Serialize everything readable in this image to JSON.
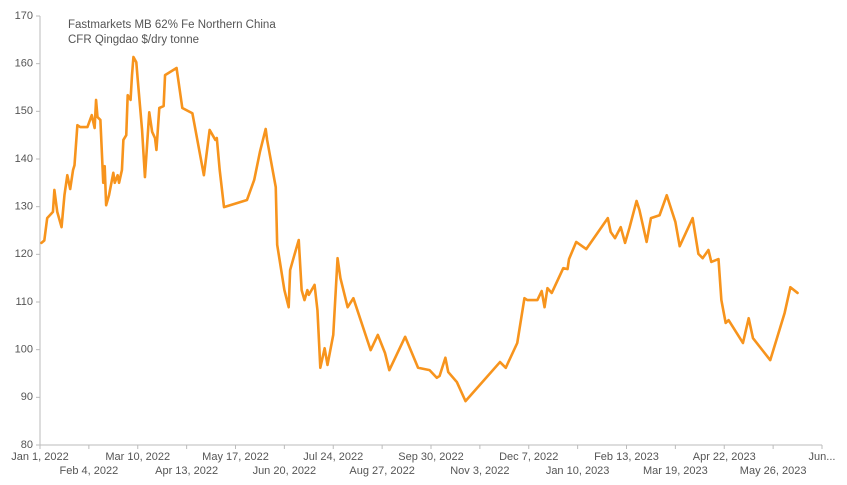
{
  "chart_data": {
    "type": "line",
    "title": [
      "Fastmarkets MB 62% Fe Northern China",
      "CFR Qingdao $/dry tonne"
    ],
    "x": [
      "2022-01-02",
      "2022-01-04",
      "2022-01-06",
      "2022-01-10",
      "2022-01-11",
      "2022-01-13",
      "2022-01-16",
      "2022-01-18",
      "2022-01-20",
      "2022-01-22",
      "2022-01-24",
      "2022-01-25",
      "2022-01-27",
      "2022-01-29",
      "2022-02-03",
      "2022-02-06",
      "2022-02-08",
      "2022-02-09",
      "2022-02-10",
      "2022-02-12",
      "2022-02-14",
      "2022-02-15",
      "2022-02-16",
      "2022-02-18",
      "2022-02-21",
      "2022-02-22",
      "2022-02-24",
      "2022-02-25",
      "2022-02-27",
      "2022-02-28",
      "2022-03-02",
      "2022-03-03",
      "2022-03-05",
      "2022-03-06",
      "2022-03-07",
      "2022-03-09",
      "2022-03-10",
      "2022-03-13",
      "2022-03-15",
      "2022-03-18",
      "2022-03-20",
      "2022-03-22",
      "2022-03-23",
      "2022-03-25",
      "2022-03-28",
      "2022-03-29",
      "2022-04-06",
      "2022-04-10",
      "2022-04-17",
      "2022-04-25",
      "2022-04-29",
      "2022-05-03",
      "2022-05-04",
      "2022-05-06",
      "2022-05-09",
      "2022-05-25",
      "2022-05-30",
      "2022-06-03",
      "2022-06-07",
      "2022-06-08",
      "2022-06-14",
      "2022-06-15",
      "2022-06-20",
      "2022-06-23",
      "2022-06-24",
      "2022-06-27",
      "2022-06-30",
      "2022-07-02",
      "2022-07-04",
      "2022-07-06",
      "2022-07-07",
      "2022-07-11",
      "2022-07-13",
      "2022-07-15",
      "2022-07-18",
      "2022-07-20",
      "2022-07-24",
      "2022-07-27",
      "2022-07-29",
      "2022-08-03",
      "2022-08-07",
      "2022-08-19",
      "2022-08-24",
      "2022-08-29",
      "2022-09-01",
      "2022-09-12",
      "2022-09-21",
      "2022-09-29",
      "2022-10-04",
      "2022-10-06",
      "2022-10-10",
      "2022-10-12",
      "2022-10-18",
      "2022-10-24",
      "2022-11-17",
      "2022-11-21",
      "2022-11-29",
      "2022-12-04",
      "2022-12-06",
      "2022-12-13",
      "2022-12-16",
      "2022-12-18",
      "2022-12-20",
      "2022-12-23",
      "2022-12-31",
      "2023-01-03",
      "2023-01-04",
      "2023-01-09",
      "2023-01-16",
      "2023-01-31",
      "2023-02-02",
      "2023-02-05",
      "2023-02-09",
      "2023-02-12",
      "2023-02-15",
      "2023-02-20",
      "2023-02-22",
      "2023-02-27",
      "2023-03-02",
      "2023-03-08",
      "2023-03-13",
      "2023-03-19",
      "2023-03-22",
      "2023-03-31",
      "2023-04-04",
      "2023-04-07",
      "2023-04-11",
      "2023-04-13",
      "2023-04-18",
      "2023-04-20",
      "2023-04-23",
      "2023-04-25",
      "2023-05-05",
      "2023-05-09",
      "2023-05-12",
      "2023-05-24",
      "2023-06-03",
      "2023-06-07",
      "2023-06-12"
    ],
    "series": [
      {
        "name": "Fastmarkets MB 62% Fe Northern China CFR Qingdao",
        "color": "#f7941d",
        "values": [
          122.4,
          122.9,
          127.6,
          128.9,
          133.5,
          128.9,
          125.7,
          132.4,
          136.6,
          133.7,
          137.7,
          138.7,
          147.1,
          146.7,
          146.7,
          149.2,
          146.5,
          152.4,
          148.8,
          148.2,
          135,
          138.5,
          130.3,
          132.4,
          137.1,
          135,
          136.6,
          135,
          137.7,
          144,
          145,
          153.4,
          152.4,
          157.6,
          161.4,
          160.3,
          156.6,
          146.1,
          136.2,
          149.8,
          145.7,
          144.4,
          141.9,
          150.7,
          151.1,
          157.6,
          159.1,
          150.7,
          149.6,
          136.6,
          146.1,
          144,
          144.4,
          137.7,
          129.9,
          131.4,
          135.6,
          141.5,
          146.3,
          144,
          134.1,
          122,
          112.5,
          108.9,
          116.7,
          119.9,
          123,
          112.5,
          110.4,
          112.5,
          111.5,
          113.6,
          108.3,
          96.2,
          100.3,
          96.8,
          103.1,
          119.2,
          115,
          108.9,
          110.8,
          99.9,
          103.1,
          99.3,
          95.7,
          102.7,
          96.2,
          95.7,
          94.1,
          94.5,
          98.3,
          95.3,
          93.2,
          89.2,
          97.4,
          96.2,
          101.4,
          110.8,
          110.4,
          110.4,
          112.3,
          108.9,
          112.9,
          111.9,
          117.1,
          116.9,
          119,
          122.6,
          121.1,
          127.6,
          124.7,
          123.4,
          125.7,
          122.4,
          125.5,
          131.2,
          129.3,
          122.6,
          127.6,
          128.2,
          132.4,
          126.8,
          121.7,
          127.6,
          120.1,
          119.2,
          120.9,
          118.4,
          119,
          110.4,
          105.6,
          106.2,
          101.4,
          106.6,
          102.4,
          97.8,
          107.7,
          113.1,
          111.9
        ]
      }
    ],
    "xlim": [
      "2022-01-01",
      "2023-06-29"
    ],
    "xticks": [
      {
        "value": "2022-01-01",
        "label": "Jan 1, 2022"
      },
      {
        "value": "2022-02-04",
        "label": "Feb 4, 2022"
      },
      {
        "value": "2022-03-10",
        "label": "Mar 10, 2022"
      },
      {
        "value": "2022-04-13",
        "label": "Apr 13, 2022"
      },
      {
        "value": "2022-05-17",
        "label": "May 17, 2022"
      },
      {
        "value": "2022-06-20",
        "label": "Jun 20, 2022"
      },
      {
        "value": "2022-07-24",
        "label": "Jul 24, 2022"
      },
      {
        "value": "2022-08-27",
        "label": "Aug 27, 2022"
      },
      {
        "value": "2022-09-30",
        "label": "Sep 30, 2022"
      },
      {
        "value": "2022-11-03",
        "label": "Nov 3, 2022"
      },
      {
        "value": "2022-12-07",
        "label": "Dec 7, 2022"
      },
      {
        "value": "2023-01-10",
        "label": "Jan 10, 2023"
      },
      {
        "value": "2023-02-13",
        "label": "Feb 13, 2023"
      },
      {
        "value": "2023-03-19",
        "label": "Mar 19, 2023"
      },
      {
        "value": "2023-04-22",
        "label": "Apr 22, 2023"
      },
      {
        "value": "2023-05-26",
        "label": "May 26, 2023"
      },
      {
        "value": "2023-06-29",
        "label": "Jun..."
      }
    ],
    "ylim": [
      80,
      170
    ],
    "yticks": [
      80,
      90,
      100,
      110,
      120,
      130,
      140,
      150,
      160,
      170
    ],
    "grid": false
  }
}
